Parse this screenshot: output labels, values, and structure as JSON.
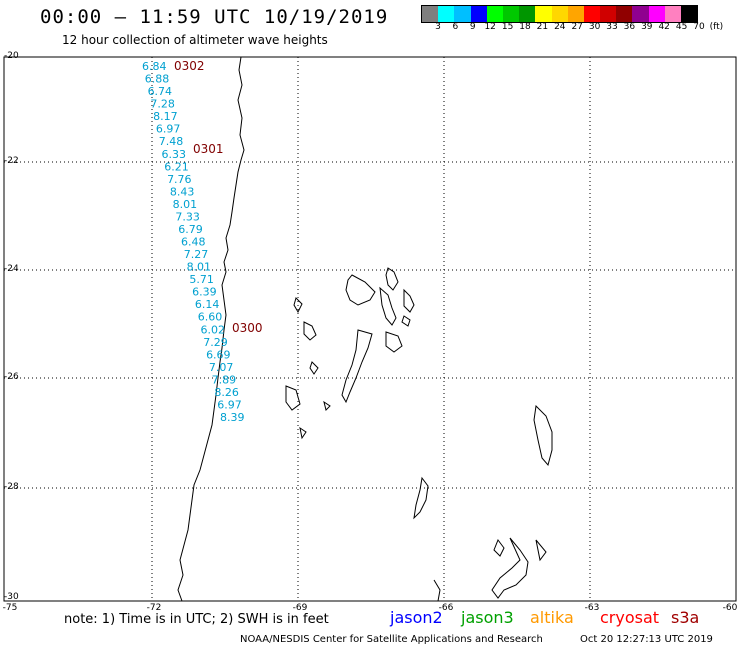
{
  "header": {
    "title": "00:00 – 11:59 UTC 10/19/2019",
    "subtitle": "12 hour collection of altimeter wave heights"
  },
  "color_scale": {
    "colors": [
      "#7f7f7f",
      "#00ffff",
      "#00bfff",
      "#0000ff",
      "#00ff00",
      "#00c800",
      "#009600",
      "#ffff00",
      "#ffd700",
      "#ffa500",
      "#ff0000",
      "#d00000",
      "#900000",
      "#900090",
      "#ff00ff",
      "#ff80c0",
      "#000000"
    ],
    "labels": [
      "3",
      "6",
      "9",
      "12",
      "15",
      "18",
      "21",
      "24",
      "27",
      "30",
      "33",
      "36",
      "39",
      "42",
      "45",
      "70",
      "(ft)"
    ]
  },
  "axes": {
    "y_ticks": [
      "-20",
      "-22",
      "-24",
      "-26",
      "-28",
      "-30"
    ],
    "x_ticks": [
      "-75",
      "-72",
      "-69",
      "-66",
      "-63",
      "-60"
    ]
  },
  "passes": [
    {
      "id": "0302",
      "color": "#800000"
    },
    {
      "id": "0301",
      "color": "#800000"
    },
    {
      "id": "0300",
      "color": "#800000"
    }
  ],
  "wave_heights": {
    "color": "#00a0d0",
    "values": [
      "6.84",
      "6.88",
      "6.74",
      "7.28",
      "8.17",
      "6.97",
      "7.48",
      "6.33",
      "6.21",
      "7.76",
      "8.43",
      "8.01",
      "7.33",
      "6.79",
      "6.48",
      "7.27",
      "8.01",
      "5.71",
      "6.39",
      "6.14",
      "6.60",
      "6.02",
      "7.29",
      "6.69",
      "7.07",
      "7.89",
      "8.26",
      "6.97",
      "8.39"
    ]
  },
  "notes": {
    "note_text": "note: 1) Time is in UTC; 2) SWH is in feet"
  },
  "legend": [
    {
      "name": "jason2",
      "color": "#0000ff"
    },
    {
      "name": "jason3",
      "color": "#00a000"
    },
    {
      "name": "altika",
      "color": "#ff9900"
    },
    {
      "name": "cryosat",
      "color": "#ff0000"
    },
    {
      "name": "s3a",
      "color": "#a00000"
    }
  ],
  "footer": {
    "credit": "NOAA/NESDIS Center for Satellite Applications and Research",
    "generated": "Oct 20 12:27:13 UTC 2019"
  }
}
